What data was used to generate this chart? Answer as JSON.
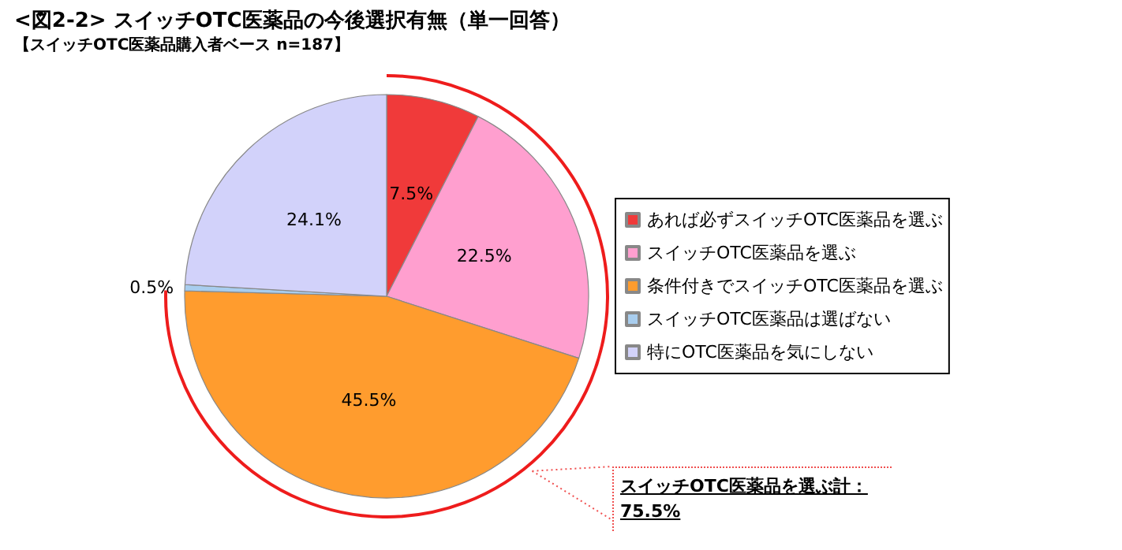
{
  "chart_data": {
    "type": "pie",
    "title": "<図2-2> スイッチOTC医薬品の今後選択有無（単一回答）",
    "subtitle": "【スイッチOTC医薬品購入者ベース n=187】",
    "categories": [
      "あれば必ずスイッチOTC医薬品を選ぶ",
      "スイッチOTC医薬品を選ぶ",
      "条件付きでスイッチOTC医薬品を選ぶ",
      "スイッチOTC医薬品は選ばない",
      "特にOTC医薬品を気にしない"
    ],
    "values": [
      7.5,
      22.5,
      45.5,
      0.5,
      24.1
    ],
    "colors": [
      "#f03a3a",
      "#ff9fcf",
      "#ff9c2e",
      "#a8cdee",
      "#d2d2fa"
    ],
    "value_labels": [
      "7.5%",
      "22.5%",
      "45.5%",
      "0.5%",
      "24.1%"
    ],
    "legend": "right",
    "annotations": [
      "スイッチOTC医薬品を選ぶ計：75.5%"
    ]
  }
}
